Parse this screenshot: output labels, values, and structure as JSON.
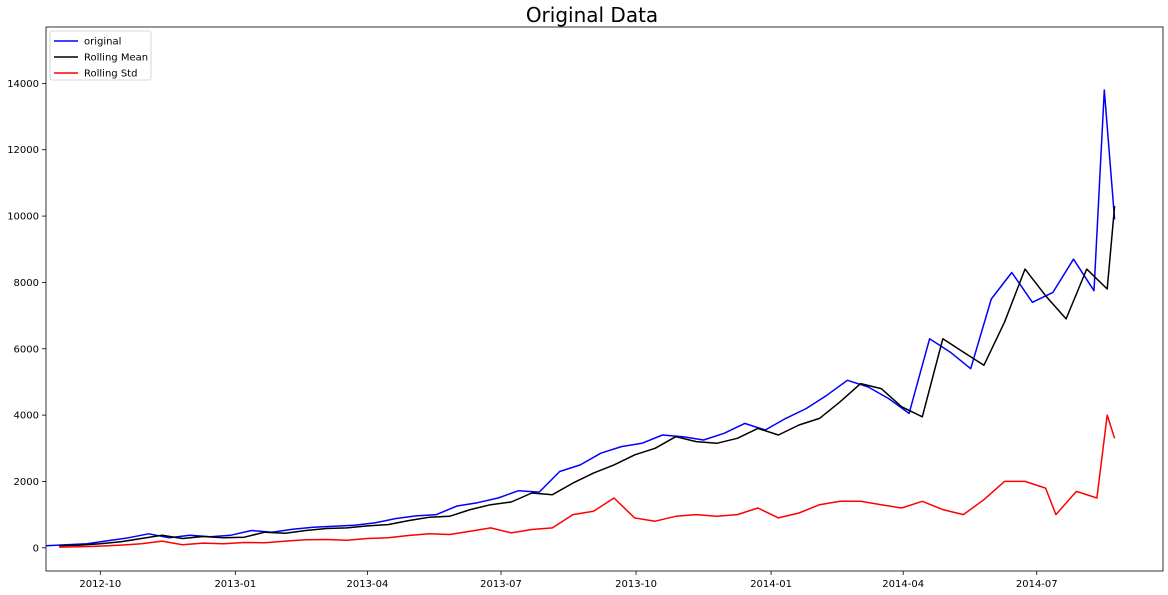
{
  "chart_data": {
    "type": "line",
    "title": "Original Data",
    "xlabel": "",
    "ylabel": "",
    "x_range": [
      "2012-08-25",
      "2014-09-25"
    ],
    "ylim": [
      -700,
      15700
    ],
    "x_ticks": [
      {
        "date": "2012-10-01",
        "label": "2012-10"
      },
      {
        "date": "2013-01-01",
        "label": "2013-01"
      },
      {
        "date": "2013-04-01",
        "label": "2013-04"
      },
      {
        "date": "2013-07-01",
        "label": "2013-07"
      },
      {
        "date": "2013-10-01",
        "label": "2013-10"
      },
      {
        "date": "2014-01-01",
        "label": "2014-01"
      },
      {
        "date": "2014-04-01",
        "label": "2014-04"
      },
      {
        "date": "2014-07-01",
        "label": "2014-07"
      }
    ],
    "y_ticks": [
      0,
      2000,
      4000,
      6000,
      8000,
      10000,
      12000,
      14000
    ],
    "grid": false,
    "legend_position": "top-left",
    "series": [
      {
        "name": "original",
        "color": "#0000ff",
        "x": [
          "2012-08-25",
          "2012-09-08",
          "2012-09-22",
          "2012-10-06",
          "2012-10-20",
          "2012-11-03",
          "2012-11-17",
          "2012-12-01",
          "2012-12-15",
          "2012-12-29",
          "2013-01-12",
          "2013-01-26",
          "2013-02-09",
          "2013-02-23",
          "2013-03-09",
          "2013-03-23",
          "2013-04-06",
          "2013-04-20",
          "2013-05-04",
          "2013-05-18",
          "2013-06-01",
          "2013-06-15",
          "2013-06-29",
          "2013-07-13",
          "2013-07-27",
          "2013-08-10",
          "2013-08-24",
          "2013-09-07",
          "2013-09-21",
          "2013-10-05",
          "2013-10-19",
          "2013-11-02",
          "2013-11-16",
          "2013-11-30",
          "2013-12-14",
          "2013-12-28",
          "2014-01-11",
          "2014-01-25",
          "2014-02-08",
          "2014-02-22",
          "2014-03-08",
          "2014-03-22",
          "2014-04-05",
          "2014-04-19",
          "2014-05-03",
          "2014-05-17",
          "2014-05-31",
          "2014-06-14",
          "2014-06-28",
          "2014-07-12",
          "2014-07-26",
          "2014-08-09",
          "2014-08-16",
          "2014-08-23"
        ],
        "y": [
          60,
          90,
          120,
          210,
          300,
          420,
          300,
          380,
          330,
          380,
          520,
          470,
          560,
          620,
          650,
          680,
          750,
          880,
          960,
          1000,
          1260,
          1360,
          1500,
          1720,
          1680,
          2300,
          2500,
          2850,
          3050,
          3150,
          3400,
          3350,
          3250,
          3450,
          3750,
          3550,
          3900,
          4200,
          4600,
          5050,
          4850,
          4500,
          4050,
          6300,
          5900,
          5400,
          7500,
          8300,
          7400,
          7700,
          8700,
          7750,
          13800,
          9900
        ]
      },
      {
        "name": "Rolling Mean",
        "color": "#000000",
        "x": [
          "2012-09-03",
          "2012-09-17",
          "2012-10-01",
          "2012-10-15",
          "2012-10-29",
          "2012-11-12",
          "2012-11-26",
          "2012-12-10",
          "2012-12-24",
          "2013-01-07",
          "2013-01-21",
          "2013-02-04",
          "2013-02-18",
          "2013-03-04",
          "2013-03-18",
          "2013-04-01",
          "2013-04-15",
          "2013-04-29",
          "2013-05-13",
          "2013-05-27",
          "2013-06-10",
          "2013-06-24",
          "2013-07-08",
          "2013-07-22",
          "2013-08-05",
          "2013-08-19",
          "2013-09-02",
          "2013-09-16",
          "2013-09-30",
          "2013-10-14",
          "2013-10-28",
          "2013-11-11",
          "2013-11-25",
          "2013-12-09",
          "2013-12-23",
          "2014-01-06",
          "2014-01-20",
          "2014-02-03",
          "2014-02-17",
          "2014-03-03",
          "2014-03-17",
          "2014-03-31",
          "2014-04-14",
          "2014-04-28",
          "2014-05-12",
          "2014-05-26",
          "2014-06-09",
          "2014-06-23",
          "2014-07-07",
          "2014-07-21",
          "2014-08-04",
          "2014-08-18",
          "2014-08-23"
        ],
        "y": [
          60,
          80,
          120,
          180,
          280,
          380,
          280,
          340,
          300,
          320,
          470,
          440,
          520,
          580,
          600,
          660,
          700,
          820,
          920,
          950,
          1150,
          1300,
          1380,
          1650,
          1600,
          1950,
          2250,
          2500,
          2800,
          3000,
          3350,
          3200,
          3150,
          3300,
          3600,
          3400,
          3700,
          3900,
          4400,
          4950,
          4800,
          4250,
          3950,
          6300,
          5900,
          5500,
          6800,
          8400,
          7600,
          6900,
          8400,
          7800,
          10300
        ]
      },
      {
        "name": "Rolling Std",
        "color": "#ff0000",
        "x": [
          "2012-09-03",
          "2012-09-17",
          "2012-10-01",
          "2012-10-15",
          "2012-10-29",
          "2012-11-12",
          "2012-11-26",
          "2012-12-10",
          "2012-12-24",
          "2013-01-07",
          "2013-01-21",
          "2013-02-04",
          "2013-02-18",
          "2013-03-04",
          "2013-03-18",
          "2013-04-01",
          "2013-04-15",
          "2013-04-29",
          "2013-05-13",
          "2013-05-27",
          "2013-06-10",
          "2013-06-24",
          "2013-07-08",
          "2013-07-22",
          "2013-08-05",
          "2013-08-19",
          "2013-09-02",
          "2013-09-16",
          "2013-09-30",
          "2013-10-14",
          "2013-10-28",
          "2013-11-11",
          "2013-11-25",
          "2013-12-09",
          "2013-12-23",
          "2014-01-06",
          "2014-01-20",
          "2014-02-03",
          "2014-02-17",
          "2014-03-03",
          "2014-03-17",
          "2014-03-31",
          "2014-04-14",
          "2014-04-28",
          "2014-05-12",
          "2014-05-26",
          "2014-06-09",
          "2014-06-23",
          "2014-07-07",
          "2014-07-14",
          "2014-07-28",
          "2014-08-11",
          "2014-08-18",
          "2014-08-23"
        ],
        "y": [
          20,
          30,
          50,
          80,
          120,
          200,
          90,
          140,
          120,
          160,
          150,
          200,
          240,
          250,
          230,
          280,
          300,
          370,
          420,
          400,
          500,
          600,
          450,
          550,
          600,
          1000,
          1100,
          1500,
          900,
          800,
          950,
          1000,
          950,
          1000,
          1200,
          900,
          1050,
          1300,
          1400,
          1400,
          1300,
          1200,
          1400,
          1150,
          1000,
          1450,
          2000,
          2000,
          1800,
          1000,
          1700,
          1500,
          4000,
          3300
        ]
      }
    ]
  }
}
